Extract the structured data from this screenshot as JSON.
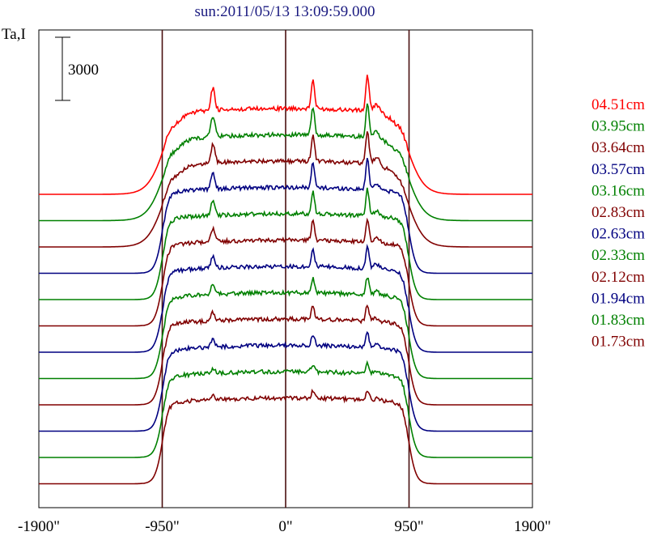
{
  "title": "sun:2011/05/13 13:09:59.000",
  "ylabel": "Ta,I",
  "scale_bar_label": "3000",
  "chart_data": {
    "type": "line",
    "title": "sun:2011/05/13 13:09:59.000",
    "xlabel": "",
    "ylabel": "Ta,I",
    "x_ticks": [
      "-1900\"",
      "-950\"",
      "0\"",
      "950\"",
      "1900\""
    ],
    "xlim": [
      -1900,
      1900
    ],
    "vertical_markers": [
      -950,
      0,
      950
    ],
    "scale_bar": 3000,
    "grid": false,
    "legend_position": "right",
    "series": [
      {
        "name": "04.51cm",
        "color": "#ff0000",
        "baseline": 0,
        "limb": "soft",
        "peaks": [
          1.0,
          0.9,
          1.0
        ]
      },
      {
        "name": "03.95cm",
        "color": "#008000",
        "baseline": 1,
        "limb": "soft",
        "peaks": [
          0.9,
          0.85,
          0.95
        ]
      },
      {
        "name": "03.64cm",
        "color": "#800000",
        "baseline": 2,
        "limb": "soft",
        "peaks": [
          0.8,
          0.8,
          0.9
        ]
      },
      {
        "name": "03.57cm",
        "color": "#000080",
        "baseline": 3,
        "limb": "sharp",
        "peaks": [
          0.75,
          0.75,
          0.85
        ]
      },
      {
        "name": "03.16cm",
        "color": "#008000",
        "baseline": 4,
        "limb": "sharp",
        "peaks": [
          0.65,
          0.7,
          0.75
        ]
      },
      {
        "name": "02.83cm",
        "color": "#800000",
        "baseline": 5,
        "limb": "sharp",
        "peaks": [
          0.55,
          0.6,
          0.65
        ]
      },
      {
        "name": "02.63cm",
        "color": "#000080",
        "baseline": 6,
        "limb": "sharp",
        "peaks": [
          0.5,
          0.55,
          0.6
        ]
      },
      {
        "name": "02.33cm",
        "color": "#008000",
        "baseline": 7,
        "limb": "sharp",
        "peaks": [
          0.4,
          0.45,
          0.5
        ]
      },
      {
        "name": "02.12cm",
        "color": "#800000",
        "baseline": 8,
        "limb": "sharp",
        "peaks": [
          0.35,
          0.4,
          0.45
        ]
      },
      {
        "name": "01.94cm",
        "color": "#000080",
        "baseline": 9,
        "limb": "sharp",
        "peaks": [
          0.3,
          0.35,
          0.4
        ]
      },
      {
        "name": "01.83cm",
        "color": "#008000",
        "baseline": 10,
        "limb": "sharp",
        "peaks": [
          0.2,
          0.25,
          0.3
        ]
      },
      {
        "name": "01.73cm",
        "color": "#800000",
        "baseline": 11,
        "limb": "sharp",
        "peaks": [
          0.15,
          0.2,
          0.25
        ]
      }
    ],
    "trace_order_top_to_bottom": [
      "#ff0000",
      "#008000",
      "#800000",
      "#000080",
      "#008000",
      "#800000",
      "#000080",
      "#008000",
      "#800000",
      "#000080",
      "#008000",
      "#800000"
    ]
  }
}
